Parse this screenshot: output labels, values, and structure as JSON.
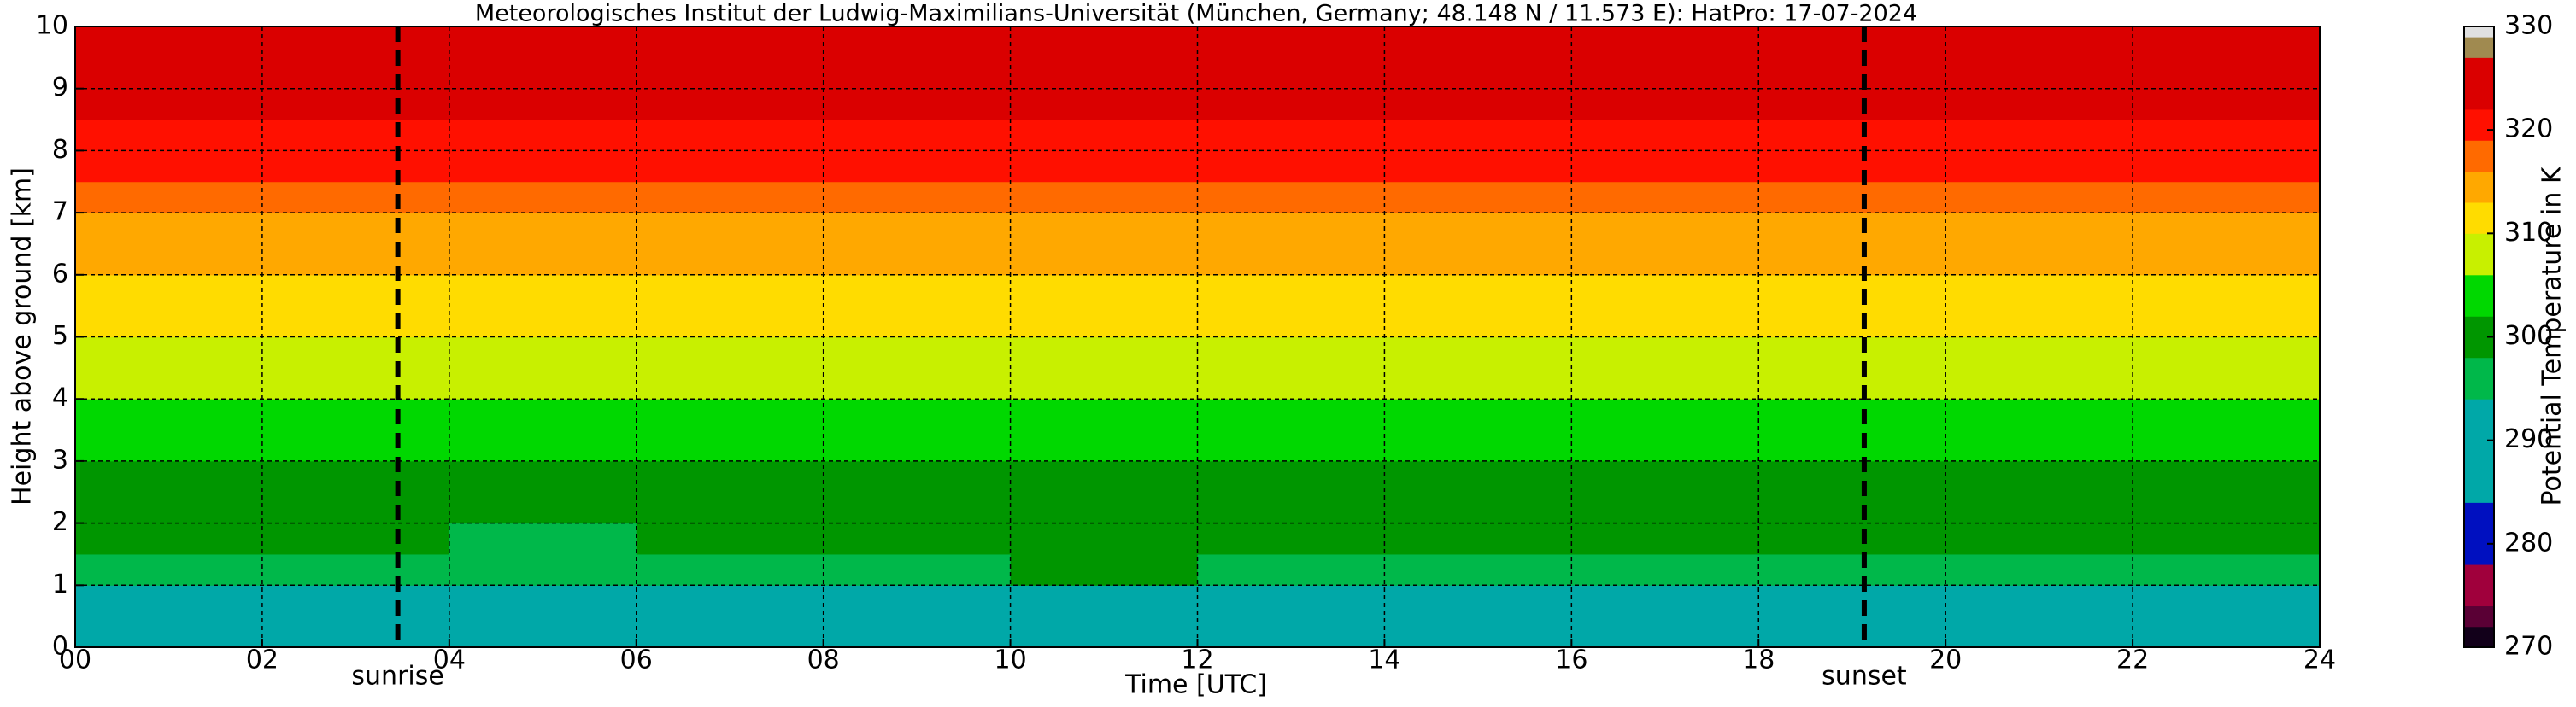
{
  "chart_data": {
    "type": "heatmap",
    "title": "Meteorologisches Institut der Ludwig-Maximilians-Universität (München, Germany; 48.148 N / 11.573 E):    HatPro: 17-07-2024",
    "xlabel": "Time [UTC]",
    "ylabel": "Height above ground [km]",
    "xbins": [
      0,
      2,
      4,
      6,
      8,
      10,
      12,
      14,
      16,
      18,
      20,
      22,
      24
    ],
    "ybins": [
      0,
      0.5,
      1,
      1.5,
      2,
      2.5,
      3,
      3.5,
      4,
      4.5,
      5,
      5.5,
      6,
      6.5,
      7,
      7.5,
      8,
      8.5,
      9,
      9.5,
      10
    ],
    "values": [
      [
        292,
        290,
        290,
        290,
        290,
        290,
        291,
        291,
        291,
        291,
        291,
        291
      ],
      [
        293,
        292,
        292,
        292,
        292,
        293,
        293,
        293,
        293,
        293,
        293,
        293
      ],
      [
        296,
        296,
        295,
        296,
        297,
        298,
        297,
        297,
        296,
        296,
        296,
        296
      ],
      [
        298,
        298,
        297,
        298,
        299,
        299,
        299,
        298,
        298,
        298,
        298,
        298
      ],
      [
        300,
        300,
        300,
        300,
        300,
        301,
        300,
        300,
        300,
        300,
        300,
        300
      ],
      [
        301,
        301,
        301,
        301,
        301,
        301,
        301,
        301,
        301,
        301,
        301,
        301
      ],
      [
        303,
        303,
        303,
        303,
        303,
        303,
        303,
        303,
        303,
        303,
        303,
        303
      ],
      [
        305,
        304,
        304,
        304,
        305,
        305,
        304,
        304,
        304,
        304,
        304,
        304
      ],
      [
        307,
        307,
        307,
        307,
        307,
        307,
        307,
        307,
        307,
        307,
        307,
        307
      ],
      [
        309,
        309,
        309,
        309,
        309,
        309,
        309,
        309,
        309,
        309,
        309,
        309
      ],
      [
        310,
        310,
        310,
        310,
        310,
        310,
        310,
        310,
        310,
        310,
        310,
        310
      ],
      [
        311,
        311,
        311,
        311,
        311,
        311,
        311,
        311,
        311,
        311,
        311,
        311
      ],
      [
        313,
        313,
        313,
        313,
        313,
        313,
        313,
        313,
        313,
        313,
        313,
        313
      ],
      [
        315,
        315,
        314,
        314,
        314,
        315,
        315,
        315,
        314,
        315,
        315,
        315
      ],
      [
        317,
        317,
        317,
        317,
        317,
        317,
        317,
        317,
        317,
        318,
        317,
        317
      ],
      [
        320,
        320,
        320,
        320,
        320,
        320,
        320,
        320,
        320,
        320,
        320,
        320
      ],
      [
        321,
        321,
        321,
        321,
        321,
        321,
        321,
        321,
        321,
        321,
        321,
        321
      ],
      [
        323,
        323,
        323,
        323,
        323,
        323,
        323,
        323,
        323,
        323,
        323,
        323
      ],
      [
        324,
        324,
        324,
        324,
        324,
        324,
        324,
        324,
        324,
        324,
        324,
        324
      ],
      [
        324,
        324,
        324,
        324,
        324,
        324,
        324,
        324,
        324,
        324,
        324,
        324
      ]
    ],
    "xlim": [
      0,
      24
    ],
    "xticks": [
      {
        "value": 0,
        "label": "00"
      },
      {
        "value": 2,
        "label": "02"
      },
      {
        "value": 4,
        "label": "04"
      },
      {
        "value": 6,
        "label": "06"
      },
      {
        "value": 8,
        "label": "08"
      },
      10,
      12,
      14,
      16,
      18,
      20,
      22,
      24
    ],
    "ylim": [
      0,
      10
    ],
    "yticks": [
      0,
      1,
      2,
      3,
      4,
      5,
      6,
      7,
      8,
      9,
      10
    ],
    "grid": true,
    "annotations": [
      {
        "text": "sunrise",
        "x": 3.45
      },
      {
        "text": "sunset",
        "x": 19.13
      }
    ],
    "colorbar": {
      "label": "Potential Temperature in K",
      "lim": [
        270,
        330
      ],
      "ticks": [
        270,
        280,
        290,
        300,
        310,
        320,
        330
      ],
      "levels": [
        270,
        272,
        274,
        278,
        284,
        294,
        298,
        302,
        306,
        310,
        313,
        316,
        319,
        322,
        327,
        329,
        330
      ],
      "colors": [
        "#12001a",
        "#5a0035",
        "#a0003c",
        "#0010c0",
        "#00a8a8",
        "#00b84a",
        "#009600",
        "#00d800",
        "#c8f000",
        "#ffdc00",
        "#ffa800",
        "#ff6a00",
        "#ff1000",
        "#da0000",
        "#a08a50",
        "#e0e0e0"
      ]
    }
  }
}
